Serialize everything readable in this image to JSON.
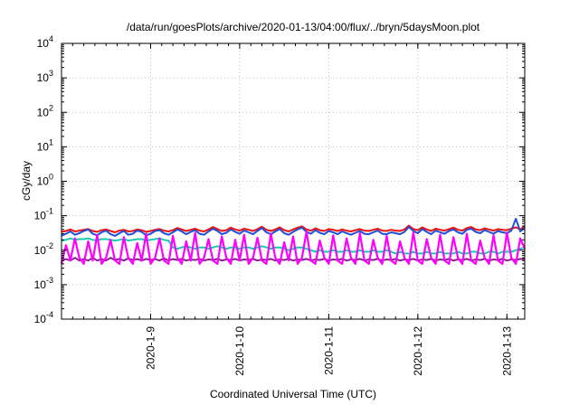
{
  "chart_data": {
    "type": "line",
    "title": "/data/run/goesPlots/archive/2020-01-13/04:00/flux/../bryn/5daysMoon.plot",
    "xlabel": "Coordinated Universal Time (UTC)",
    "ylabel": "cGy/day",
    "yscale": "log",
    "ylim": [
      0.0001,
      10000
    ],
    "xlim": [
      0,
      5.2
    ],
    "grid": true,
    "y_ticks": [
      {
        "base": "10",
        "exp": "-4",
        "value": 0.0001
      },
      {
        "base": "10",
        "exp": "-3",
        "value": 0.001
      },
      {
        "base": "10",
        "exp": "-2",
        "value": 0.01
      },
      {
        "base": "10",
        "exp": "-1",
        "value": 0.1
      },
      {
        "base": "10",
        "exp": "0",
        "value": 1
      },
      {
        "base": "10",
        "exp": "1",
        "value": 10
      },
      {
        "base": "10",
        "exp": "2",
        "value": 100
      },
      {
        "base": "10",
        "exp": "3",
        "value": 1000
      },
      {
        "base": "10",
        "exp": "4",
        "value": 10000
      }
    ],
    "x_ticks": [
      {
        "label": "2020-1-9",
        "value": 1
      },
      {
        "label": "2020-1-10",
        "value": 2
      },
      {
        "label": "2020-1-11",
        "value": 3
      },
      {
        "label": "2020-1-12",
        "value": 4
      },
      {
        "label": "2020-1-13",
        "value": 5
      }
    ],
    "series": [
      {
        "color": "#ee1111",
        "values": [
          0.034,
          0.036,
          0.04,
          0.035,
          0.037,
          0.039,
          0.041,
          0.036,
          0.034,
          0.038,
          0.04,
          0.036,
          0.033,
          0.037,
          0.039,
          0.035,
          0.036,
          0.04,
          0.038,
          0.034,
          0.036,
          0.039,
          0.041,
          0.037,
          0.035,
          0.038,
          0.044,
          0.04,
          0.036,
          0.039,
          0.042,
          0.037,
          0.035,
          0.04,
          0.047,
          0.041,
          0.036,
          0.038,
          0.045,
          0.04,
          0.037,
          0.042,
          0.039,
          0.036,
          0.041,
          0.048,
          0.039,
          0.036,
          0.04,
          0.046,
          0.038,
          0.035,
          0.04,
          0.045,
          0.049,
          0.04,
          0.037,
          0.043,
          0.038,
          0.036,
          0.041,
          0.039,
          0.036,
          0.04,
          0.037,
          0.035,
          0.038,
          0.041,
          0.037,
          0.036,
          0.039,
          0.042,
          0.037,
          0.036,
          0.039,
          0.037,
          0.036,
          0.04,
          0.052,
          0.041,
          0.038,
          0.046,
          0.04,
          0.036,
          0.042,
          0.039,
          0.037,
          0.041,
          0.045,
          0.039,
          0.037,
          0.044,
          0.047,
          0.04,
          0.038,
          0.043,
          0.04,
          0.037,
          0.041,
          0.039,
          0.038,
          0.042,
          0.046,
          0.04,
          0.05
        ]
      },
      {
        "color": "#1f4fd8",
        "values": [
          0.026,
          0.03,
          0.035,
          0.028,
          0.031,
          0.036,
          0.04,
          0.03,
          0.027,
          0.033,
          0.037,
          0.029,
          0.026,
          0.031,
          0.036,
          0.028,
          0.03,
          0.037,
          0.034,
          0.027,
          0.03,
          0.036,
          0.038,
          0.031,
          0.028,
          0.033,
          0.04,
          0.035,
          0.029,
          0.034,
          0.038,
          0.03,
          0.028,
          0.035,
          0.042,
          0.036,
          0.029,
          0.032,
          0.04,
          0.034,
          0.03,
          0.037,
          0.033,
          0.029,
          0.036,
          0.044,
          0.033,
          0.029,
          0.035,
          0.041,
          0.031,
          0.028,
          0.034,
          0.04,
          0.045,
          0.034,
          0.03,
          0.038,
          0.032,
          0.029,
          0.036,
          0.033,
          0.029,
          0.035,
          0.031,
          0.028,
          0.032,
          0.036,
          0.03,
          0.029,
          0.033,
          0.037,
          0.03,
          0.029,
          0.033,
          0.031,
          0.029,
          0.034,
          0.047,
          0.036,
          0.031,
          0.041,
          0.034,
          0.029,
          0.037,
          0.033,
          0.03,
          0.036,
          0.04,
          0.033,
          0.03,
          0.039,
          0.042,
          0.034,
          0.031,
          0.038,
          0.034,
          0.03,
          0.036,
          0.033,
          0.031,
          0.037,
          0.082,
          0.035,
          0.045
        ]
      },
      {
        "color": "#16c9b0",
        "values": [
          0.019,
          0.02,
          0.022,
          0.02,
          0.021,
          0.021,
          0.022,
          0.02,
          0.019,
          0.021,
          0.021,
          0.02,
          0.019,
          0.02,
          0.021,
          0.019,
          0.02,
          0.021,
          0.021,
          0.019,
          0.02,
          0.021,
          0.022,
          0.02,
          0.019,
          0.012,
          0.011,
          0.012,
          0.013,
          0.012,
          0.011,
          0.012,
          0.012,
          0.011,
          0.012,
          0.013,
          0.012,
          0.011,
          0.012,
          0.012,
          0.011,
          0.012,
          0.012,
          0.011,
          0.012,
          0.013,
          0.012,
          0.011,
          0.012,
          0.012,
          0.011,
          0.01,
          0.011,
          0.012,
          0.012,
          0.011,
          0.01,
          0.009,
          0.01,
          0.009,
          0.009,
          0.01,
          0.009,
          0.009,
          0.01,
          0.009,
          0.009,
          0.01,
          0.009,
          0.009,
          0.01,
          0.009,
          0.009,
          0.01,
          0.009,
          0.008,
          0.009,
          0.008,
          0.008,
          0.009,
          0.008,
          0.008,
          0.009,
          0.008,
          0.008,
          0.009,
          0.008,
          0.008,
          0.008,
          0.009,
          0.008,
          0.008,
          0.009,
          0.009,
          0.008,
          0.008,
          0.009,
          0.009,
          0.008,
          0.009,
          0.009,
          0.009,
          0.01,
          0.011,
          0.012
        ]
      },
      {
        "color": "#8a2090",
        "values": [
          0.005,
          0.0055,
          0.005,
          0.006,
          0.005,
          0.0055,
          0.005,
          0.006,
          0.005,
          0.0055,
          0.005,
          0.006,
          0.0052,
          0.0056,
          0.005,
          0.0058,
          0.0052,
          0.0055,
          0.005,
          0.0056,
          0.0052,
          0.0055,
          0.005,
          0.0058,
          0.005,
          0.0055,
          0.0052,
          0.0056,
          0.005,
          0.0054,
          0.0052,
          0.0056,
          0.005,
          0.0054,
          0.0052,
          0.0056,
          0.005,
          0.0054,
          0.0052,
          0.0056,
          0.005,
          0.0054,
          0.0052,
          0.0056,
          0.005,
          0.0054,
          0.0052,
          0.0056,
          0.005,
          0.0054,
          0.0052,
          0.0056,
          0.005,
          0.0054,
          0.0052,
          0.0056,
          0.005,
          0.0054,
          0.0052,
          0.0056,
          0.005,
          0.0054,
          0.0052,
          0.0056,
          0.005,
          0.0054,
          0.0052,
          0.0056,
          0.005,
          0.0054,
          0.0052,
          0.0056,
          0.005,
          0.0054,
          0.0052,
          0.0056,
          0.005,
          0.0054,
          0.0052,
          0.0056,
          0.005,
          0.0054,
          0.0052,
          0.0056,
          0.005,
          0.0054,
          0.0052,
          0.0056,
          0.005,
          0.0054,
          0.0052,
          0.0056,
          0.005,
          0.0054,
          0.0052,
          0.0056,
          0.005,
          0.0054,
          0.0052,
          0.0056,
          0.005,
          0.0054,
          0.0052,
          0.0056,
          0.0055
        ]
      },
      {
        "color": "#ff00ff",
        "values": [
          0.004,
          0.014,
          0.005,
          0.022,
          0.006,
          0.004,
          0.018,
          0.005,
          0.028,
          0.004,
          0.006,
          0.02,
          0.005,
          0.004,
          0.024,
          0.006,
          0.004,
          0.016,
          0.005,
          0.03,
          0.004,
          0.006,
          0.022,
          0.005,
          0.004,
          0.026,
          0.006,
          0.004,
          0.018,
          0.005,
          0.032,
          0.004,
          0.006,
          0.021,
          0.005,
          0.004,
          0.025,
          0.006,
          0.004,
          0.02,
          0.005,
          0.028,
          0.004,
          0.006,
          0.023,
          0.005,
          0.004,
          0.03,
          0.006,
          0.004,
          0.017,
          0.005,
          0.025,
          0.004,
          0.006,
          0.035,
          0.005,
          0.004,
          0.019,
          0.006,
          0.004,
          0.027,
          0.005,
          0.004,
          0.022,
          0.006,
          0.004,
          0.031,
          0.005,
          0.004,
          0.02,
          0.006,
          0.004,
          0.026,
          0.005,
          0.004,
          0.018,
          0.006,
          0.004,
          0.033,
          0.005,
          0.004,
          0.021,
          0.006,
          0.004,
          0.028,
          0.005,
          0.004,
          0.024,
          0.006,
          0.004,
          0.03,
          0.005,
          0.004,
          0.019,
          0.006,
          0.004,
          0.027,
          0.005,
          0.004,
          0.032,
          0.006,
          0.004,
          0.022,
          0.011
        ]
      }
    ]
  }
}
